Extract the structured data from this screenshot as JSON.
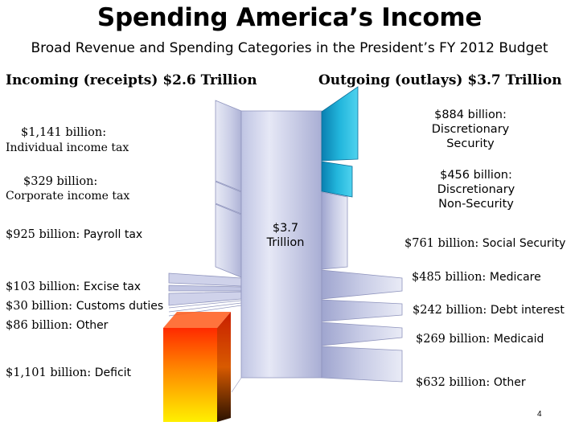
{
  "title": "Spending America’s Income",
  "subtitle": "Broad Revenue and Spending Categories in the President’s FY 2012 Budget",
  "incoming_header": "Incoming (receipts) $2.6 Trillion",
  "outgoing_header": "Outgoing (outlays) $3.7 Trillion",
  "center": {
    "amount": "$3.7",
    "unit": "Trillion"
  },
  "receipts": [
    {
      "amount": "$1,141 billion:",
      "name": "Individual income tax",
      "value_billion": 1141
    },
    {
      "amount": "$329 billion:",
      "name": "Corporate income tax",
      "value_billion": 329
    },
    {
      "amount": "$925 billion:",
      "name": "Payroll tax",
      "value_billion": 925
    },
    {
      "amount": "$103 billion:",
      "name": "Excise tax",
      "value_billion": 103
    },
    {
      "amount": "$30 billion:",
      "name": "Customs duties",
      "value_billion": 30
    },
    {
      "amount": "$86 billion:",
      "name": "Other",
      "value_billion": 86
    },
    {
      "amount": "$1,101 billion:",
      "name": "Deficit",
      "value_billion": 1101
    }
  ],
  "outlays": [
    {
      "line1": "$884 billion:",
      "line2": "Discretionary",
      "line3": "Security",
      "value_billion": 884
    },
    {
      "line1": "$456 billion:",
      "line2": "Discretionary",
      "line3": "Non-Security",
      "value_billion": 456
    },
    {
      "amount": "$761 billion:",
      "name": "Social Security",
      "value_billion": 761
    },
    {
      "amount": "$485 billion:",
      "name": "Medicare",
      "value_billion": 485
    },
    {
      "amount": "$242 billion:",
      "name": "Debt interest",
      "value_billion": 242
    },
    {
      "amount": "$269 billion:",
      "name": "Medicaid",
      "value_billion": 269
    },
    {
      "amount": "$632 billion:",
      "name": "Other",
      "value_billion": 632
    }
  ],
  "colors": {
    "flow_light": "#c8cde8",
    "flow_dark": "#9aa0cc",
    "teal": "#1fb3d8",
    "deficit_top": "#ff2a00",
    "deficit_bottom": "#ffee00"
  },
  "page_number": "4"
}
